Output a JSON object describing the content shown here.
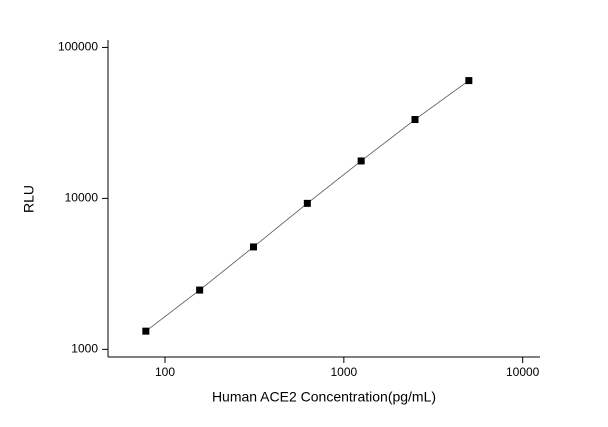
{
  "chart_data": {
    "type": "scatter",
    "x_label": "Human ACE2 Concentration(pg/mL)",
    "y_label": "RLU",
    "x_scale": "log",
    "y_scale": "log",
    "xlim": [
      48,
      12500
    ],
    "ylim": [
      890,
      112000
    ],
    "xticks": [
      100,
      1000,
      10000
    ],
    "yticks": [
      1000,
      10000,
      100000
    ],
    "connect": true,
    "series": [
      {
        "color": "#000000",
        "x": [
          78.125,
          156.25,
          312.5,
          625,
          1250,
          2500,
          5000
        ],
        "values": [
          1320,
          2470,
          4770,
          9270,
          17700,
          33300,
          60300
        ]
      }
    ]
  }
}
